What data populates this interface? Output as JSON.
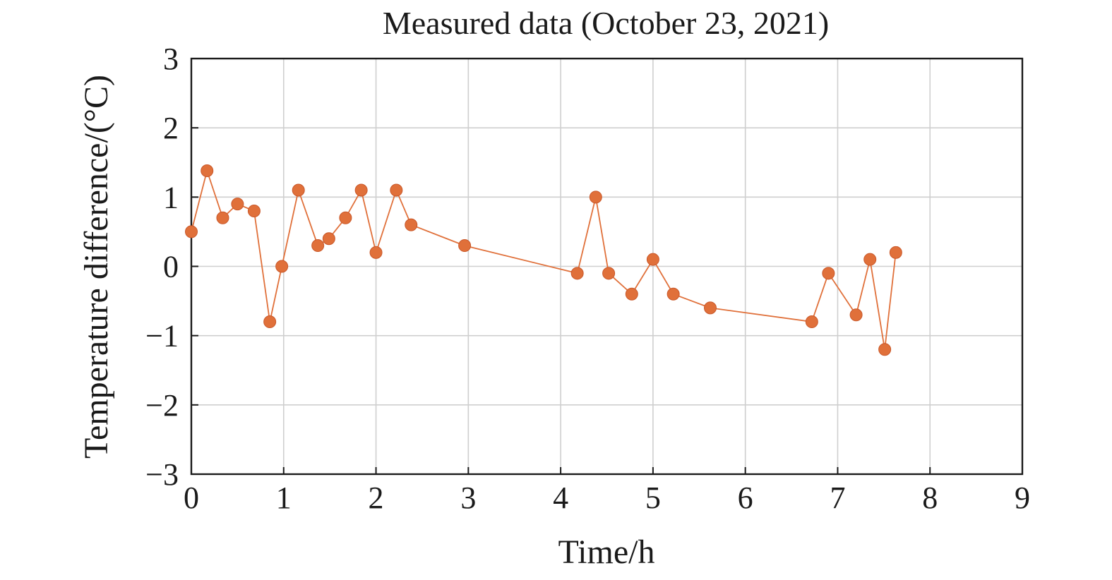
{
  "chart_data": {
    "type": "line",
    "title": "Measured data (October 23, 2021)",
    "xlabel": "Time/h",
    "ylabel": "Temperature difference/(°C)",
    "xlim": [
      0,
      9
    ],
    "ylim": [
      -3,
      3
    ],
    "x_ticks": [
      0,
      1,
      2,
      3,
      4,
      5,
      6,
      7,
      8,
      9
    ],
    "x_tick_labels": [
      "0",
      "1",
      "2",
      "3",
      "4",
      "5",
      "6",
      "7",
      "8",
      "9"
    ],
    "y_ticks": [
      3,
      2,
      1,
      0,
      -1,
      -2,
      -3
    ],
    "y_tick_labels": [
      "3",
      "2",
      "1",
      "0",
      "−1",
      "−2",
      "−3"
    ],
    "grid": true,
    "legend": false,
    "series": [
      {
        "color": "#e0703a",
        "marker": "circle",
        "x": [
          0.0,
          0.17,
          0.34,
          0.5,
          0.68,
          0.85,
          0.98,
          1.16,
          1.37,
          1.49,
          1.67,
          1.84,
          2.0,
          2.22,
          2.38,
          2.96,
          4.18,
          4.38,
          4.52,
          4.77,
          5.0,
          5.22,
          5.62,
          6.72,
          6.9,
          7.2,
          7.35,
          7.51,
          7.63
        ],
        "y": [
          0.5,
          1.38,
          0.7,
          0.9,
          0.8,
          -0.8,
          0.0,
          1.1,
          0.3,
          0.4,
          0.7,
          1.1,
          0.2,
          1.1,
          0.6,
          0.3,
          -0.1,
          1.0,
          -0.1,
          -0.4,
          0.1,
          -0.4,
          -0.6,
          -0.8,
          -0.1,
          -0.7,
          0.1,
          -1.2,
          0.2
        ]
      }
    ]
  }
}
